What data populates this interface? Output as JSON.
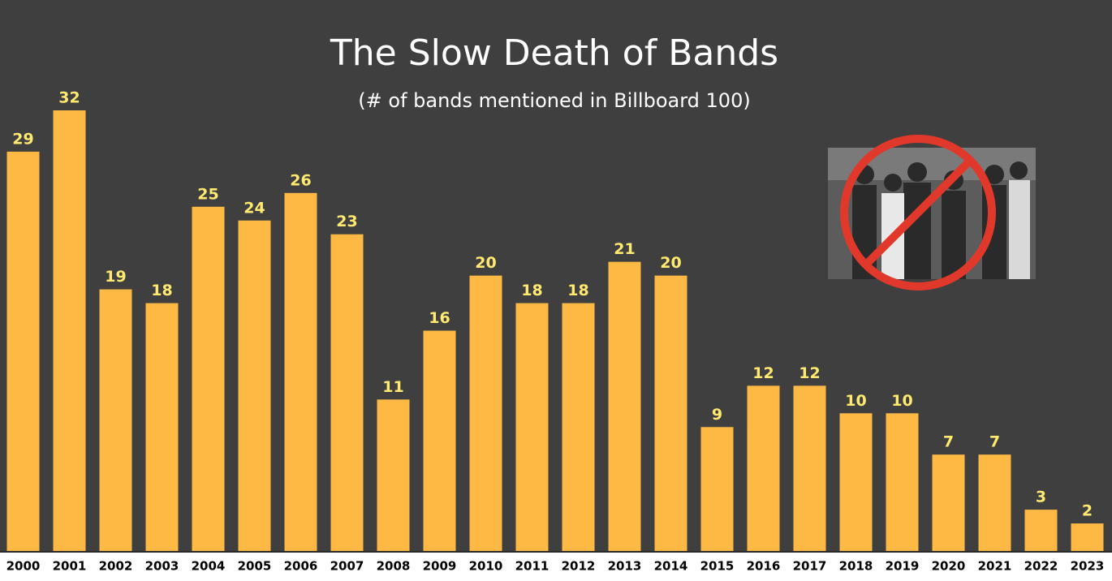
{
  "chart_data": {
    "type": "bar",
    "title": "The Slow Death of Bands",
    "subtitle": "(# of bands mentioned in Billboard 100)",
    "categories": [
      "2000",
      "2001",
      "2002",
      "2003",
      "2004",
      "2005",
      "2006",
      "2007",
      "2008",
      "2009",
      "2010",
      "2011",
      "2012",
      "2013",
      "2014",
      "2015",
      "2016",
      "2017",
      "2018",
      "2019",
      "2020",
      "2021",
      "2022",
      "2023"
    ],
    "values": [
      29,
      32,
      19,
      18,
      25,
      24,
      26,
      23,
      11,
      16,
      20,
      18,
      18,
      21,
      20,
      9,
      12,
      12,
      10,
      10,
      7,
      7,
      3,
      2
    ],
    "color": "#fdb943",
    "ylim": [
      0,
      32
    ]
  }
}
